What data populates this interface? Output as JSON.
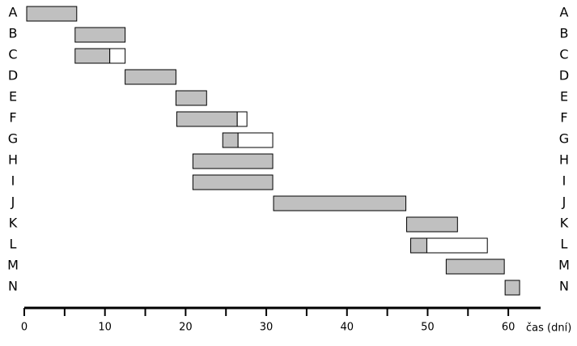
{
  "chart_data": {
    "type": "gantt",
    "tasks": [
      {
        "name": "A",
        "start": 0.3,
        "end": 6.5,
        "slack_end": null
      },
      {
        "name": "B",
        "start": 6.3,
        "end": 12.5,
        "slack_end": null
      },
      {
        "name": "C",
        "start": 6.3,
        "end": 10.6,
        "slack_end": 12.5
      },
      {
        "name": "D",
        "start": 12.5,
        "end": 18.8,
        "slack_end": null
      },
      {
        "name": "E",
        "start": 18.8,
        "end": 22.6,
        "slack_end": null
      },
      {
        "name": "F",
        "start": 18.9,
        "end": 26.4,
        "slack_end": 27.6
      },
      {
        "name": "G",
        "start": 24.6,
        "end": 26.5,
        "slack_end": 30.8
      },
      {
        "name": "H",
        "start": 20.9,
        "end": 30.8,
        "slack_end": null
      },
      {
        "name": "I",
        "start": 20.9,
        "end": 30.8,
        "slack_end": null
      },
      {
        "name": "J",
        "start": 30.9,
        "end": 47.3,
        "slack_end": null
      },
      {
        "name": "K",
        "start": 47.4,
        "end": 53.7,
        "slack_end": null
      },
      {
        "name": "L",
        "start": 47.9,
        "end": 49.9,
        "slack_end": 57.4
      },
      {
        "name": "M",
        "start": 52.3,
        "end": 59.5,
        "slack_end": null
      },
      {
        "name": "N",
        "start": 59.6,
        "end": 61.4,
        "slack_end": null
      }
    ],
    "xlabel": "čas (dní)",
    "xlim": [
      0,
      64
    ],
    "xticks": [
      0,
      10,
      20,
      30,
      40,
      50,
      60
    ],
    "minor_xticks": [
      5,
      15,
      25,
      35,
      45,
      55
    ],
    "bar_color": "#c0c0c0",
    "slack_color": "#ffffff"
  }
}
